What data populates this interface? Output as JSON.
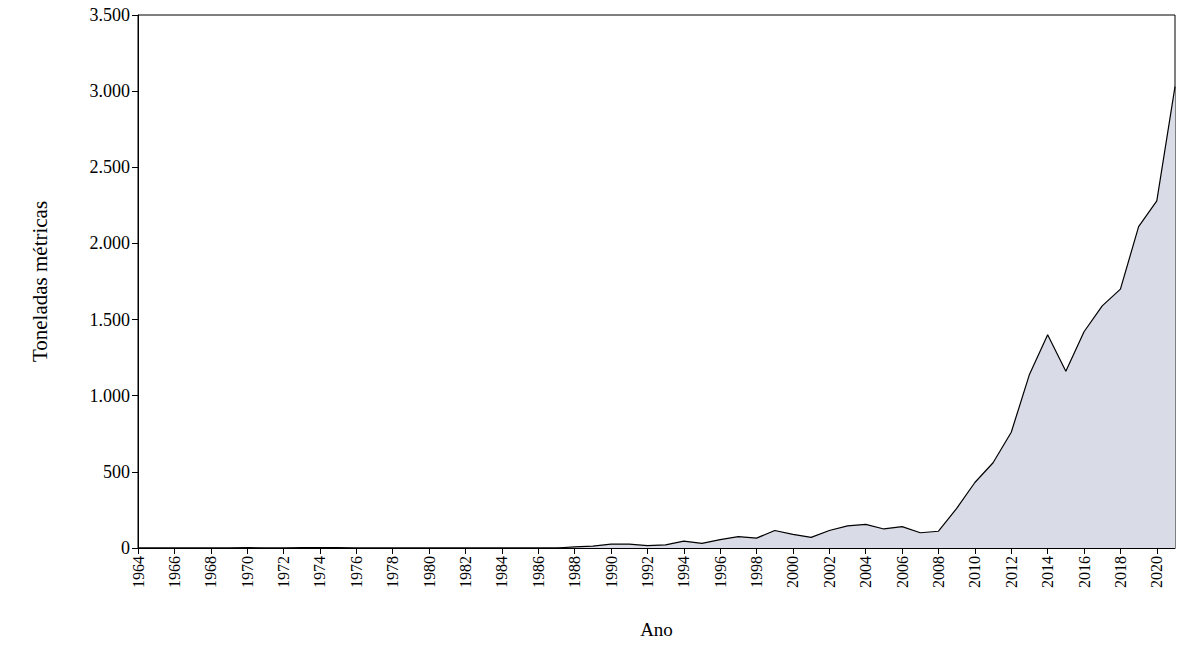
{
  "chart_data": {
    "type": "area",
    "x_label": "Ano",
    "y_label": "Toneladas métricas",
    "x": [
      1964,
      1965,
      1966,
      1967,
      1968,
      1969,
      1970,
      1971,
      1972,
      1973,
      1974,
      1975,
      1976,
      1977,
      1978,
      1979,
      1980,
      1981,
      1982,
      1983,
      1984,
      1985,
      1986,
      1987,
      1988,
      1989,
      1990,
      1991,
      1992,
      1993,
      1994,
      1995,
      1996,
      1997,
      1998,
      1999,
      2000,
      2001,
      2002,
      2003,
      2004,
      2005,
      2006,
      2007,
      2008,
      2009,
      2010,
      2011,
      2012,
      2013,
      2014,
      2015,
      2016,
      2017,
      2018,
      2019,
      2020,
      2021
    ],
    "values": [
      0,
      0,
      0,
      0,
      0,
      0,
      2,
      0,
      0,
      3,
      3,
      3,
      0,
      0,
      0,
      0,
      0,
      0,
      0,
      0,
      0,
      0,
      0,
      0,
      8,
      12,
      25,
      25,
      15,
      20,
      45,
      30,
      55,
      75,
      65,
      115,
      90,
      70,
      115,
      145,
      155,
      125,
      140,
      100,
      110,
      260,
      430,
      560,
      760,
      1140,
      1400,
      1160,
      1420,
      1590,
      1700,
      2110,
      2280,
      3030
    ],
    "color": "#d9dce6",
    "xlim": [
      1964,
      2021
    ],
    "xticks": [
      1964,
      1966,
      1968,
      1970,
      1972,
      1974,
      1976,
      1978,
      1980,
      1982,
      1984,
      1986,
      1988,
      1990,
      1992,
      1994,
      1996,
      1998,
      2000,
      2002,
      2004,
      2006,
      2008,
      2010,
      2012,
      2014,
      2016,
      2018,
      2020
    ],
    "ylim": [
      0,
      3500
    ],
    "yticks": [
      0,
      500,
      {
        "value": 1000,
        "label": "1.000"
      },
      {
        "value": 1500,
        "label": "1.500"
      },
      {
        "value": 2000,
        "label": "2.000"
      },
      {
        "value": 2500,
        "label": "2.500"
      },
      {
        "value": 3000,
        "label": "3.000"
      },
      {
        "value": 3500,
        "label": "3.500"
      }
    ],
    "grid": false
  }
}
